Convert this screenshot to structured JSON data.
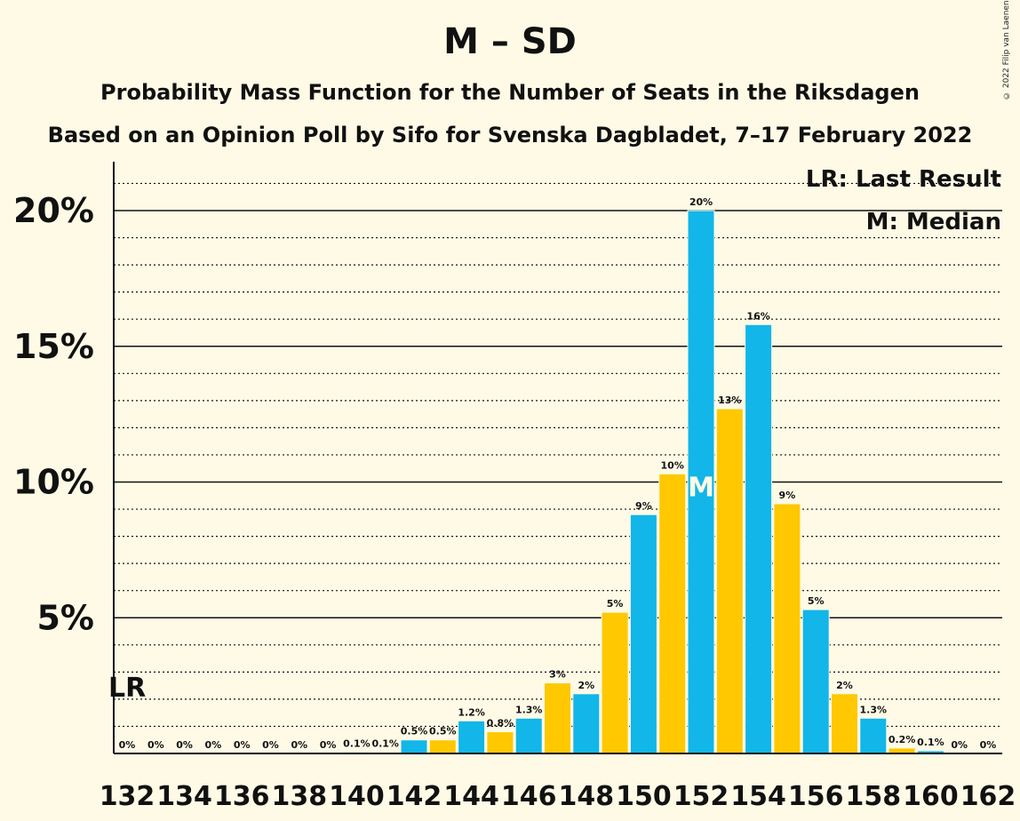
{
  "title": "M – SD",
  "subtitle": "Probability Mass Function for the Number of Seats in the Riksdagen",
  "subtitle2": "Based on an Opinion Poll by Sifo for Svenska Dagbladet, 7–17 February 2022",
  "copyright": "© 2022 Filip van Laenen",
  "legend": {
    "lr": "LR: Last Result",
    "median": "M: Median"
  },
  "markers": {
    "lr_label": "LR",
    "lr_seat": 132,
    "median_label": "M",
    "median_seat": 152
  },
  "colors": {
    "party1": "#12b6e8",
    "party2": "#ffc800",
    "background": "#fefae6"
  },
  "chart_data": {
    "type": "bar",
    "xlabel": "",
    "ylabel": "",
    "ylim": [
      0,
      21
    ],
    "yticks": [
      5,
      10,
      15,
      20
    ],
    "ytick_labels": [
      "5%",
      "10%",
      "15%",
      "20%"
    ],
    "xtick_labels": [
      "132",
      "134",
      "136",
      "138",
      "140",
      "142",
      "144",
      "146",
      "148",
      "150",
      "152",
      "154",
      "156",
      "158",
      "160",
      "162"
    ],
    "grid": "major solid at 5% steps, dotted at 1% steps",
    "seats": [
      132,
      133,
      134,
      135,
      136,
      137,
      138,
      139,
      140,
      141,
      142,
      143,
      144,
      145,
      146,
      147,
      148,
      149,
      150,
      151,
      152,
      153,
      154,
      155,
      156,
      157,
      158,
      159,
      160,
      161,
      162
    ],
    "values": [
      0,
      0,
      0,
      0,
      0,
      0,
      0,
      0,
      0.05,
      0.05,
      0.5,
      0.5,
      1.2,
      0.8,
      1.3,
      2.6,
      2.2,
      5.2,
      8.8,
      10.3,
      20.0,
      12.7,
      15.8,
      9.2,
      5.3,
      2.2,
      1.3,
      0.2,
      0.1,
      0,
      0
    ],
    "labels": [
      "0%",
      "0%",
      "0%",
      "0%",
      "0%",
      "0%",
      "0%",
      "0%",
      "0.1%",
      "0.1%",
      "0.5%",
      "0.5%",
      "1.2%",
      "0.8%",
      "1.3%",
      "3%",
      "2%",
      "5%",
      "9%",
      "10%",
      "20%",
      "13%",
      "16%",
      "9%",
      "5%",
      "2%",
      "1.3%",
      "0.2%",
      "0.1%",
      "0%",
      "0%"
    ]
  }
}
